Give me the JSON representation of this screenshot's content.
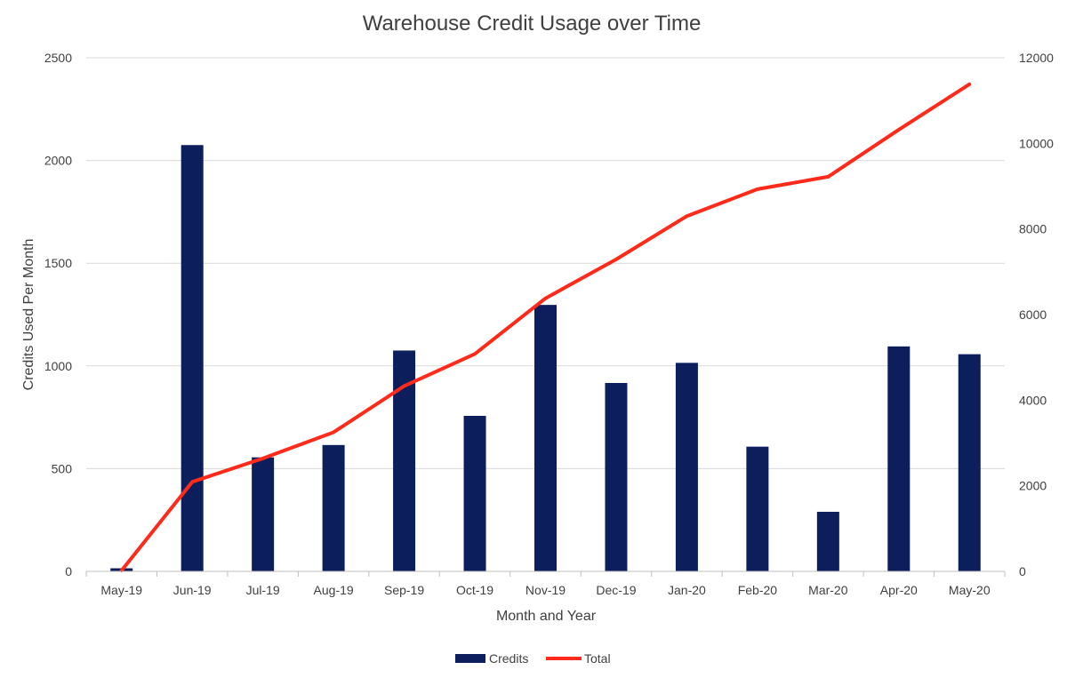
{
  "chart_data": {
    "type": "bar",
    "title": "Warehouse Credit Usage over Time",
    "xlabel": "Month and Year",
    "ylabel": "Credits Used Per Month",
    "y2label": "",
    "categories": [
      "May-19",
      "Jun-19",
      "Jul-19",
      "Aug-19",
      "Sep-19",
      "Oct-19",
      "Nov-19",
      "Dec-19",
      "Jan-20",
      "Feb-20",
      "Mar-20",
      "Apr-20",
      "May-20"
    ],
    "ylim": [
      0,
      2500
    ],
    "y2lim": [
      0,
      12000
    ],
    "yticks": [
      "0",
      "500",
      "1000",
      "1500",
      "2000",
      "2500"
    ],
    "y2ticks": [
      "0",
      "2000",
      "4000",
      "6000",
      "8000",
      "10000",
      "12000"
    ],
    "grid": true,
    "legend_position": "bottom",
    "series": [
      {
        "name": "Credits",
        "type": "bar",
        "axis": "left",
        "color": "#0c1f5c",
        "values": [
          15,
          2075,
          555,
          615,
          1075,
          757,
          1297,
          917,
          1015,
          607,
          290,
          1095,
          1057
        ]
      },
      {
        "name": "Total",
        "type": "line",
        "axis": "right",
        "color": "#ff2a1a",
        "values": [
          20,
          2090,
          2640,
          3250,
          4330,
          5080,
          6380,
          7290,
          8300,
          8930,
          9220,
          10320,
          11380
        ]
      }
    ]
  }
}
